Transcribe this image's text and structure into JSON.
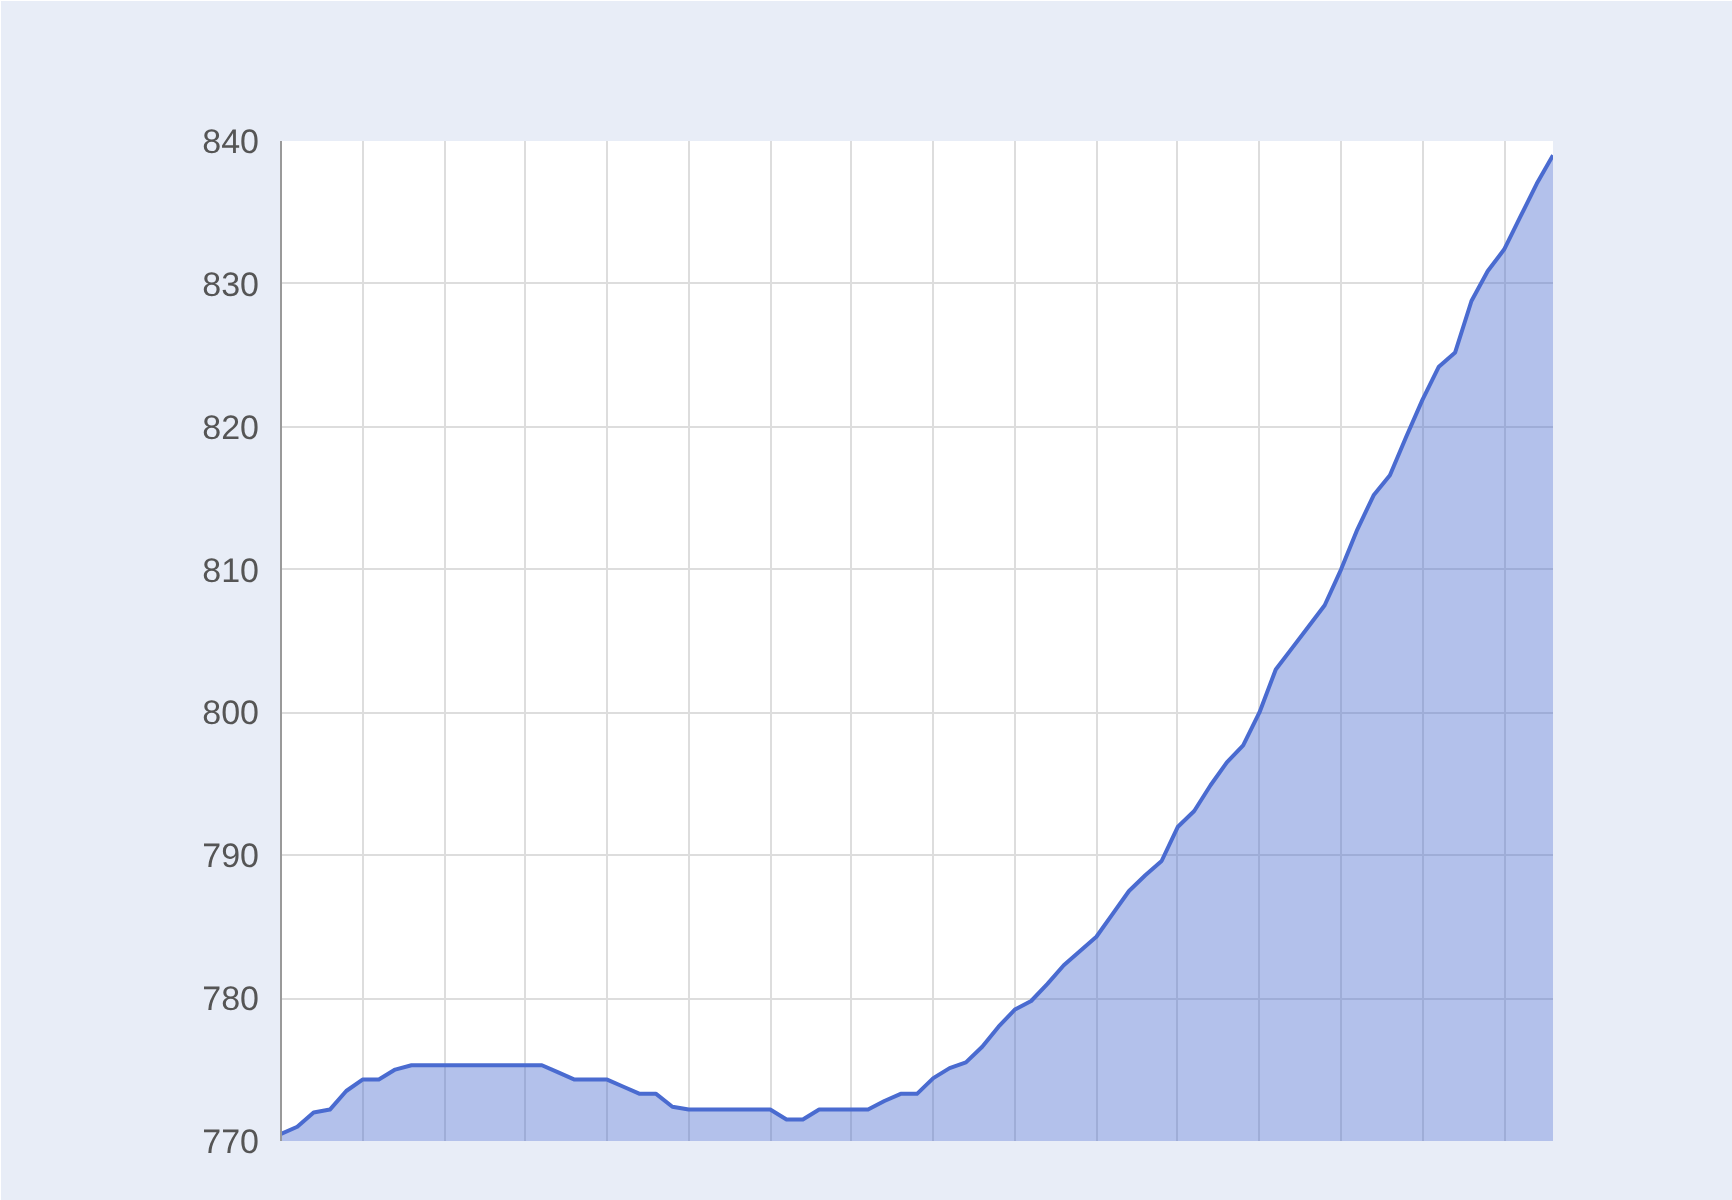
{
  "chart_data": {
    "type": "area",
    "categories": [
      null,
      null,
      null,
      null,
      null,
      null,
      null,
      null,
      null,
      null,
      null,
      null,
      null,
      null,
      null,
      null,
      null,
      null,
      null,
      null,
      null,
      null,
      null,
      null,
      null,
      null,
      null,
      null,
      null,
      null,
      null,
      null,
      null,
      null,
      null,
      null,
      null,
      null,
      null,
      null,
      null,
      null,
      null,
      null,
      null,
      null,
      null,
      null,
      null,
      null,
      null,
      null,
      null,
      null,
      null,
      null,
      null,
      null,
      null,
      null,
      null,
      null,
      null,
      null,
      null,
      null,
      null,
      null,
      null,
      null,
      null,
      null,
      null,
      null,
      null,
      null,
      null,
      null,
      null
    ],
    "series": [
      {
        "color": "#4a6bd0",
        "values": [
          770.5,
          771,
          772,
          772.2,
          773.5,
          774.3,
          774.3,
          775,
          775.3,
          775.3,
          775.3,
          775.3,
          775.3,
          775.3,
          775.3,
          775.3,
          775.3,
          774.8,
          774.3,
          774.3,
          774.3,
          773.8,
          773.3,
          773.3,
          772.4,
          772.2,
          772.2,
          772.2,
          772.2,
          772.2,
          772.2,
          771.5,
          771.5,
          772.2,
          772.2,
          772.2,
          772.2,
          772.8,
          773.3,
          773.3,
          774.4,
          775.1,
          775.5,
          776.6,
          778,
          779.2,
          779.8,
          781,
          782.3,
          783.3,
          784.3,
          785.9,
          787.5,
          788.6,
          789.6,
          792,
          793.1,
          794.9,
          796.5,
          797.7,
          800,
          803,
          804.5,
          806,
          807.5,
          810,
          812.8,
          815.2,
          816.6,
          819.3,
          821.9,
          824.2,
          825.2,
          828.8,
          830.9,
          832.4,
          834.7,
          837,
          839
        ]
      }
    ],
    "ylim": [
      770,
      840
    ],
    "yticks": [
      770,
      780,
      790,
      800,
      810,
      820,
      830,
      840
    ],
    "grid": true,
    "tick_labels": "y"
  }
}
